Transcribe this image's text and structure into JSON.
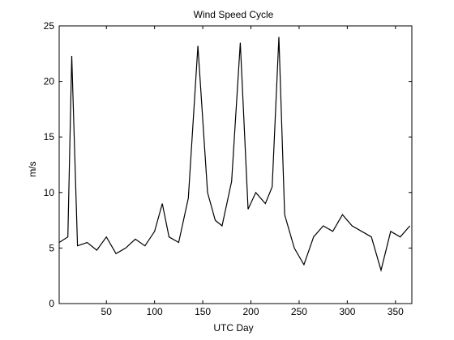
{
  "chart_data": {
    "type": "line",
    "title": "Wind Speed Cycle",
    "xlabel": "UTC Day",
    "ylabel": "m/s",
    "xlim": [
      1,
      367
    ],
    "ylim": [
      0,
      25
    ],
    "xticks": [
      50,
      100,
      150,
      200,
      250,
      300,
      350
    ],
    "yticks": [
      0,
      5,
      10,
      15,
      20,
      25
    ],
    "grid": false,
    "line_color": "#000000",
    "series": [
      {
        "x": [
          1,
          10,
          14,
          20,
          30,
          40,
          50,
          60,
          70,
          80,
          90,
          100,
          108,
          115,
          125,
          135,
          145,
          155,
          163,
          170,
          180,
          189,
          197,
          205,
          215,
          222,
          229,
          235,
          245,
          255,
          265,
          275,
          285,
          295,
          305,
          315,
          325,
          335,
          345,
          355,
          365
        ],
        "y": [
          5.5,
          6.0,
          22.3,
          5.2,
          5.5,
          4.8,
          6.0,
          4.5,
          5.0,
          5.8,
          5.2,
          6.5,
          9.0,
          6.0,
          5.5,
          9.5,
          23.2,
          10.0,
          7.5,
          7.0,
          11.0,
          23.5,
          8.5,
          10.0,
          9.0,
          10.5,
          24.0,
          8.0,
          5.0,
          3.5,
          6.0,
          7.0,
          6.5,
          8.0,
          7.0,
          6.5,
          6.0,
          3.0,
          6.5,
          6.0,
          7.0
        ]
      }
    ]
  }
}
